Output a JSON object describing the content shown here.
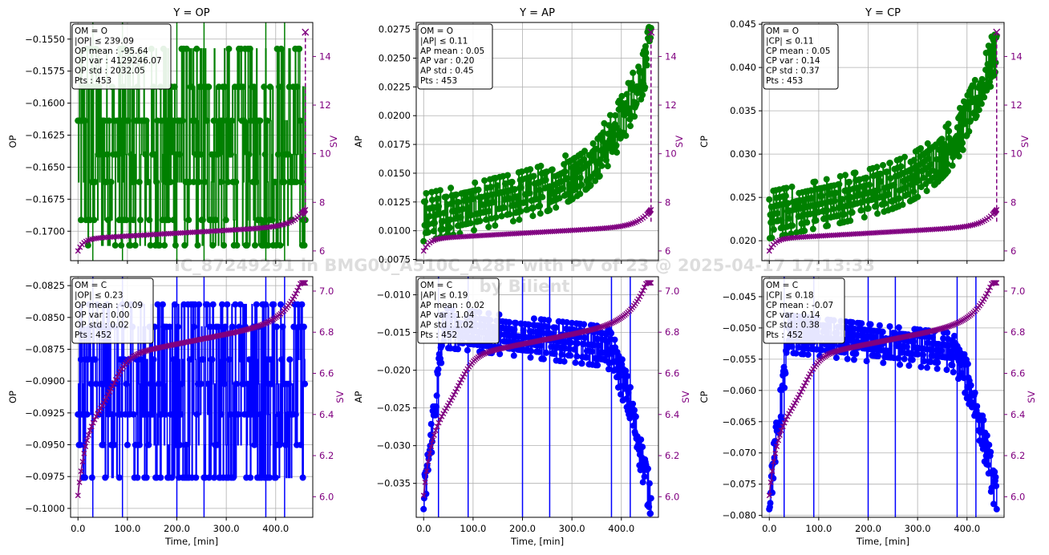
{
  "colors": {
    "top_series": "#008000",
    "bottom_series": "#0000ff",
    "sv": "#800080",
    "grid": "#b0b0b0"
  },
  "watermark": {
    "line1": "IC_87249291 in BMG00_A510C_A28F with PV of 23 @  2025-04-17 17:13:33",
    "line2": "by Bilient"
  },
  "xlabel": "Time, [min]",
  "sv_label": "SV",
  "x_ticks": [
    0,
    100,
    200,
    300,
    400
  ],
  "x_tick_labels": [
    "0.0",
    "100.0",
    "200.0",
    "300.0",
    "400.0"
  ],
  "chart_data": [
    {
      "type": "line",
      "title": "Y = OP",
      "ylabel": "OP",
      "om": "O",
      "xlim": [
        -15,
        475
      ],
      "ylim": [
        -0.1723,
        -0.1537
      ],
      "yticks": [
        -0.155,
        -0.1575,
        -0.16,
        -0.1625,
        -0.165,
        -0.1675,
        -0.17
      ],
      "ytick_labels": [
        "−0.1550",
        "−0.1575",
        "−0.1600",
        "−0.1625",
        "−0.1650",
        "−0.1675",
        "−0.1700"
      ],
      "sv_lim": [
        5.6,
        15.4
      ],
      "sv_ticks": [
        6,
        8,
        10,
        12,
        14
      ],
      "sv_tick_labels": [
        "6",
        "8",
        "10",
        "12",
        "14"
      ],
      "sv_final_jump": [
        7.2,
        15.0
      ],
      "stats": [
        "OM = O",
        "|OP| ≤ 239.09",
        "OP mean : -95.64",
        "OP var  : 4129246.07",
        "OP std  : 2032.05",
        "Pts         : 453"
      ],
      "series": [
        {
          "name": "OP",
          "pattern": "op_top",
          "n": 453,
          "range": [
            -0.1716,
            -0.1551
          ]
        },
        {
          "name": "SV",
          "pattern": "sv_top",
          "range": [
            6.0,
            7.2
          ]
        }
      ]
    },
    {
      "type": "line",
      "title": "Y = AP",
      "ylabel": "AP",
      "om": "O",
      "xlim": [
        -15,
        475
      ],
      "ylim": [
        0.0074,
        0.0281
      ],
      "yticks": [
        0.0075,
        0.01,
        0.0125,
        0.015,
        0.0175,
        0.02,
        0.0225,
        0.025,
        0.0275
      ],
      "ytick_labels": [
        "0.0075",
        "0.0100",
        "0.0125",
        "0.0150",
        "0.0175",
        "0.0200",
        "0.0225",
        "0.0250",
        "0.0275"
      ],
      "sv_lim": [
        5.6,
        15.4
      ],
      "sv_ticks": [
        6,
        8,
        10,
        12,
        14
      ],
      "sv_tick_labels": [
        "6",
        "8",
        "10",
        "12",
        "14"
      ],
      "sv_final_jump": [
        7.2,
        15.0
      ],
      "stats": [
        "OM = O",
        "|AP| ≤ 0.11",
        "AP mean : 0.05",
        "AP var  : 0.20",
        "AP std  : 0.45",
        "Pts           : 453"
      ],
      "series": [
        {
          "name": "AP",
          "pattern": "growth",
          "n": 453,
          "range": [
            0.0085,
            0.0281
          ]
        },
        {
          "name": "SV",
          "pattern": "sv_top",
          "range": [
            6.0,
            7.2
          ]
        }
      ]
    },
    {
      "type": "line",
      "title": "Y = CP",
      "ylabel": "CP",
      "om": "O",
      "xlim": [
        -15,
        475
      ],
      "ylim": [
        0.0177,
        0.0452
      ],
      "yticks": [
        0.02,
        0.025,
        0.03,
        0.035,
        0.04,
        0.045
      ],
      "ytick_labels": [
        "0.020",
        "0.025",
        "0.030",
        "0.035",
        "0.040",
        "0.045"
      ],
      "sv_lim": [
        5.6,
        15.4
      ],
      "sv_ticks": [
        6,
        8,
        10,
        12,
        14
      ],
      "sv_tick_labels": [
        "6",
        "8",
        "10",
        "12",
        "14"
      ],
      "sv_final_jump": [
        7.2,
        15.0
      ],
      "stats": [
        "OM = O",
        "|CP| ≤ 0.11",
        "CP mean : 0.05",
        "CP var  : 0.14",
        "CP std  : 0.37",
        "Pts           : 453"
      ],
      "series": [
        {
          "name": "CP",
          "pattern": "growth",
          "n": 453,
          "range": [
            0.0195,
            0.0452
          ]
        },
        {
          "name": "SV",
          "pattern": "sv_top",
          "range": [
            6.0,
            7.2
          ]
        }
      ]
    },
    {
      "type": "line",
      "title": "",
      "ylabel": "OP",
      "om": "C",
      "xlim": [
        -15,
        475
      ],
      "ylim": [
        -0.1007,
        -0.0818
      ],
      "yticks": [
        -0.0825,
        -0.085,
        -0.0875,
        -0.09,
        -0.0925,
        -0.095,
        -0.0975,
        -0.1
      ],
      "ytick_labels": [
        "−0.0825",
        "−0.0850",
        "−0.0875",
        "−0.0900",
        "−0.0925",
        "−0.0950",
        "−0.0975",
        "−0.1000"
      ],
      "sv_lim": [
        5.9,
        7.07
      ],
      "sv_ticks": [
        6.0,
        6.2,
        6.4,
        6.6,
        6.8,
        7.0
      ],
      "sv_tick_labels": [
        "6.0",
        "6.2",
        "6.4",
        "6.6",
        "6.8",
        "7.0"
      ],
      "stats": [
        "OM = C",
        "|OP| ≤ 0.23",
        "OP mean : -0.09",
        "OP var  : 0.00",
        "OP std  : 0.02",
        "Pts         : 452"
      ],
      "series": [
        {
          "name": "OP",
          "pattern": "op_bottom",
          "n": 452,
          "range": [
            -0.0995,
            -0.0835
          ]
        },
        {
          "name": "SV",
          "pattern": "sv_bottom",
          "range": [
            5.95,
            7.04
          ]
        }
      ]
    },
    {
      "type": "line",
      "title": "",
      "ylabel": "AP",
      "om": "C",
      "xlim": [
        -15,
        475
      ],
      "ylim": [
        -0.0395,
        -0.0076
      ],
      "yticks": [
        -0.01,
        -0.015,
        -0.02,
        -0.025,
        -0.03,
        -0.035
      ],
      "ytick_labels": [
        "−0.010",
        "−0.015",
        "−0.020",
        "−0.025",
        "−0.030",
        "−0.035"
      ],
      "sv_lim": [
        5.9,
        7.07
      ],
      "sv_ticks": [
        6.0,
        6.2,
        6.4,
        6.6,
        6.8,
        7.0
      ],
      "sv_tick_labels": [
        "6.0",
        "6.2",
        "6.4",
        "6.6",
        "6.8",
        "7.0"
      ],
      "stats": [
        "OM = C",
        "|AP| ≤ 0.19",
        "AP mean : 0.02",
        "AP var  : 1.04",
        "AP std  : 1.02",
        "Pts           : 452"
      ],
      "series": [
        {
          "name": "AP",
          "pattern": "hump",
          "n": 452,
          "range": [
            -0.039,
            -0.01
          ]
        },
        {
          "name": "SV",
          "pattern": "sv_bottom",
          "range": [
            5.95,
            7.04
          ]
        }
      ]
    },
    {
      "type": "line",
      "title": "",
      "ylabel": "CP",
      "om": "C",
      "xlim": [
        -15,
        475
      ],
      "ylim": [
        -0.0803,
        -0.0418
      ],
      "yticks": [
        -0.045,
        -0.05,
        -0.055,
        -0.06,
        -0.065,
        -0.07,
        -0.075,
        -0.08
      ],
      "ytick_labels": [
        "−0.045",
        "−0.050",
        "−0.055",
        "−0.060",
        "−0.065",
        "−0.070",
        "−0.075",
        "−0.080"
      ],
      "sv_lim": [
        5.9,
        7.07
      ],
      "sv_ticks": [
        6.0,
        6.2,
        6.4,
        6.6,
        6.8,
        7.0
      ],
      "sv_tick_labels": [
        "6.0",
        "6.2",
        "6.4",
        "6.6",
        "6.8",
        "7.0"
      ],
      "stats": [
        "OM = C",
        "|CP| ≤ 0.18",
        "CP mean : -0.07",
        "CP var  : 0.14",
        "CP std  : 0.38",
        "Pts           : 452"
      ],
      "series": [
        {
          "name": "CP",
          "pattern": "hump",
          "n": 452,
          "range": [
            -0.079,
            -0.046
          ]
        },
        {
          "name": "SV",
          "pattern": "sv_bottom",
          "range": [
            5.95,
            7.04
          ]
        }
      ]
    }
  ]
}
